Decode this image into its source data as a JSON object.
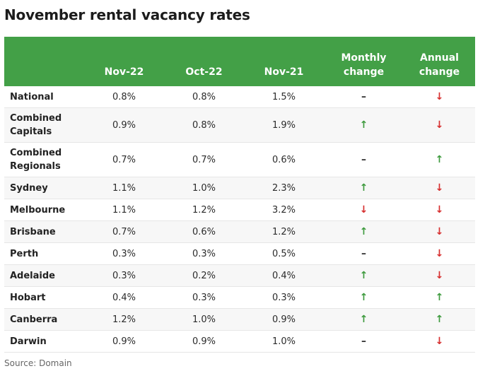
{
  "title": "November rental vacancy rates",
  "source": "Source: Domain",
  "colors": {
    "header_bg": "#43a047",
    "up": "#3d9a3d",
    "down": "#d62d2d"
  },
  "chart_data": {
    "type": "table",
    "columns": [
      "",
      "Nov-22",
      "Oct-22",
      "Nov-21",
      "Monthly change",
      "Annual change"
    ],
    "rows": [
      {
        "region": "National",
        "nov22": "0.8%",
        "oct22": "0.8%",
        "nov21": "1.5%",
        "monthly": "flat",
        "annual": "down"
      },
      {
        "region": "Combined Capitals",
        "nov22": "0.9%",
        "oct22": "0.8%",
        "nov21": "1.9%",
        "monthly": "up",
        "annual": "down"
      },
      {
        "region": "Combined Regionals",
        "nov22": "0.7%",
        "oct22": "0.7%",
        "nov21": "0.6%",
        "monthly": "flat",
        "annual": "up"
      },
      {
        "region": "Sydney",
        "nov22": "1.1%",
        "oct22": "1.0%",
        "nov21": "2.3%",
        "monthly": "up",
        "annual": "down"
      },
      {
        "region": "Melbourne",
        "nov22": "1.1%",
        "oct22": "1.2%",
        "nov21": "3.2%",
        "monthly": "down",
        "annual": "down"
      },
      {
        "region": "Brisbane",
        "nov22": "0.7%",
        "oct22": "0.6%",
        "nov21": "1.2%",
        "monthly": "up",
        "annual": "down"
      },
      {
        "region": "Perth",
        "nov22": "0.3%",
        "oct22": "0.3%",
        "nov21": "0.5%",
        "monthly": "flat",
        "annual": "down"
      },
      {
        "region": "Adelaide",
        "nov22": "0.3%",
        "oct22": "0.2%",
        "nov21": "0.4%",
        "monthly": "up",
        "annual": "down"
      },
      {
        "region": "Hobart",
        "nov22": "0.4%",
        "oct22": "0.3%",
        "nov21": "0.3%",
        "monthly": "up",
        "annual": "up"
      },
      {
        "region": "Canberra",
        "nov22": "1.2%",
        "oct22": "1.0%",
        "nov21": "0.9%",
        "monthly": "up",
        "annual": "up"
      },
      {
        "region": "Darwin",
        "nov22": "0.9%",
        "oct22": "0.9%",
        "nov21": "1.0%",
        "monthly": "flat",
        "annual": "down"
      }
    ]
  }
}
